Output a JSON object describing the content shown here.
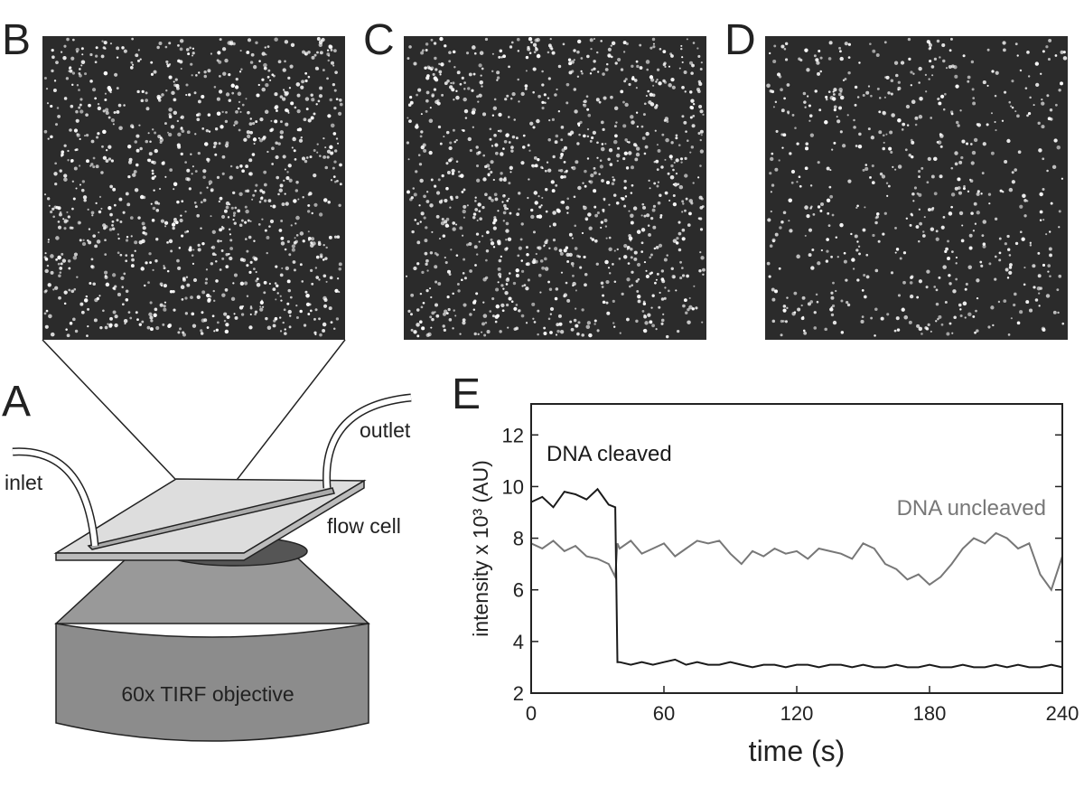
{
  "panels": {
    "B": "B",
    "C": "C",
    "D": "D",
    "A": "A",
    "E": "E"
  },
  "diagram": {
    "inlet": "inlet",
    "outlet": "outlet",
    "flow_cell": "flow cell",
    "objective": "60x TIRF objective"
  },
  "chart_data": {
    "type": "line",
    "xlabel": "time (s)",
    "ylabel": "intensity x 10³ (AU)",
    "xlim": [
      0,
      240
    ],
    "xticks": [
      0,
      60,
      120,
      180,
      240
    ],
    "ylim": [
      2,
      13.2
    ],
    "yticks": [
      2,
      4,
      6,
      8,
      10,
      12
    ],
    "x": [
      0,
      5,
      10,
      15,
      20,
      25,
      30,
      35,
      38,
      39,
      40,
      45,
      50,
      55,
      60,
      65,
      70,
      75,
      80,
      85,
      90,
      95,
      100,
      105,
      110,
      115,
      120,
      125,
      130,
      135,
      140,
      145,
      150,
      155,
      160,
      165,
      170,
      175,
      180,
      185,
      190,
      195,
      200,
      205,
      210,
      215,
      220,
      225,
      230,
      235,
      240
    ],
    "series": [
      {
        "name": "DNA uncleaved",
        "color": "#777777",
        "values": [
          7.8,
          7.6,
          7.9,
          7.5,
          7.7,
          7.3,
          7.2,
          7.0,
          6.5,
          7.8,
          7.6,
          7.9,
          7.4,
          7.6,
          7.8,
          7.3,
          7.6,
          7.9,
          7.8,
          7.9,
          7.4,
          7.0,
          7.5,
          7.3,
          7.6,
          7.4,
          7.5,
          7.2,
          7.6,
          7.5,
          7.4,
          7.2,
          7.8,
          7.6,
          7.0,
          6.8,
          6.4,
          6.6,
          6.2,
          6.5,
          7.0,
          7.6,
          8.0,
          7.8,
          8.2,
          8.0,
          7.6,
          7.8,
          6.6,
          6.0,
          7.3
        ]
      },
      {
        "name": "DNA cleaved",
        "color": "#1a1a1a",
        "values": [
          9.4,
          9.6,
          9.2,
          9.8,
          9.7,
          9.5,
          9.9,
          9.3,
          9.2,
          3.2,
          3.2,
          3.1,
          3.2,
          3.1,
          3.2,
          3.3,
          3.1,
          3.2,
          3.1,
          3.1,
          3.2,
          3.1,
          3.0,
          3.1,
          3.1,
          3.0,
          3.1,
          3.1,
          3.0,
          3.1,
          3.1,
          3.0,
          3.1,
          3.0,
          3.0,
          3.1,
          3.0,
          3.0,
          3.1,
          3.0,
          3.0,
          3.1,
          3.0,
          3.0,
          3.1,
          3.0,
          3.1,
          3.0,
          3.0,
          3.1,
          3.0
        ]
      }
    ]
  }
}
